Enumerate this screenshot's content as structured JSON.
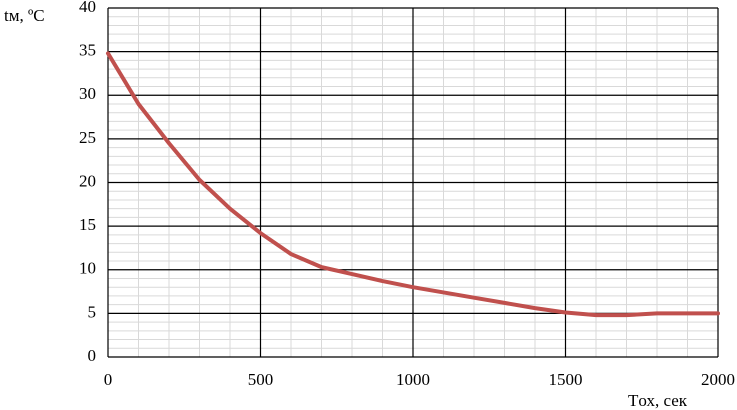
{
  "chart_data": {
    "type": "line",
    "y_label": "tм, ºC",
    "x_label": "Tох, сек",
    "x": [
      0,
      100,
      200,
      300,
      400,
      500,
      600,
      700,
      800,
      900,
      1000,
      1100,
      1200,
      1300,
      1400,
      1500,
      1600,
      1700,
      1800,
      1900,
      2000
    ],
    "series": [
      {
        "color": "#c0504d",
        "values": [
          34.8,
          29,
          24.5,
          20.3,
          17,
          14.2,
          11.8,
          10.3,
          9.5,
          8.7,
          8,
          7.4,
          6.8,
          6.2,
          5.6,
          5.1,
          4.8,
          4.8,
          5,
          5,
          5
        ]
      }
    ],
    "xlim": [
      0,
      2000
    ],
    "xticks": [
      0,
      500,
      1000,
      1500,
      2000
    ],
    "ylim": [
      0,
      40
    ],
    "yticks": [
      0,
      5,
      10,
      15,
      20,
      25,
      30,
      35,
      40
    ],
    "minor_xticks": [
      100,
      200,
      300,
      400,
      600,
      700,
      800,
      900,
      1100,
      1200,
      1300,
      1400,
      1600,
      1700,
      1800,
      1900
    ],
    "minor_yticks": [
      1,
      2,
      3,
      4,
      6,
      7,
      8,
      9,
      11,
      12,
      13,
      14,
      16,
      17,
      18,
      19,
      21,
      22,
      23,
      24,
      26,
      27,
      28,
      29,
      31,
      32,
      33,
      34,
      36,
      37,
      38,
      39
    ],
    "grid": true
  }
}
